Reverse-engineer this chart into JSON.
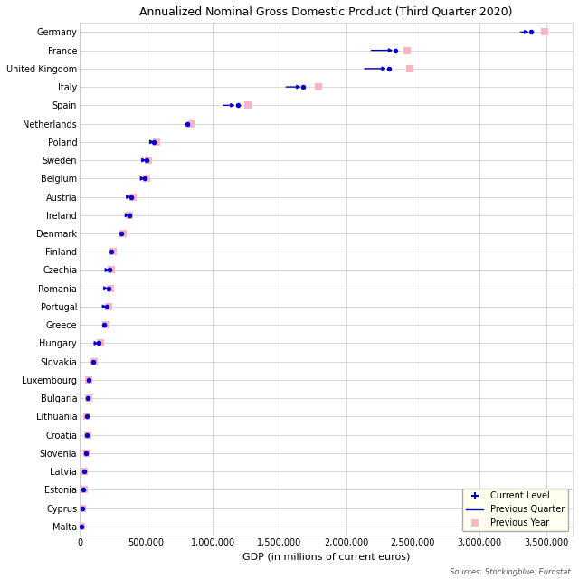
{
  "title": "Annualized Nominal Gross Domestic Product (Third Quarter 2020)",
  "xlabel": "GDP (in millions of current euros)",
  "source": "Sources: Stockingblue, Eurostat",
  "countries": [
    "Germany",
    "France",
    "United Kingdom",
    "Italy",
    "Spain",
    "Netherlands",
    "Poland",
    "Sweden",
    "Belgium",
    "Austria",
    "Ireland",
    "Denmark",
    "Finland",
    "Czechia",
    "Romania",
    "Portugal",
    "Greece",
    "Hungary",
    "Slovakia",
    "Luxembourg",
    "Bulgaria",
    "Lithuania",
    "Croatia",
    "Slovenia",
    "Latvia",
    "Estonia",
    "Cyprus",
    "Malta"
  ],
  "current": [
    3390000,
    2370000,
    2320000,
    1680000,
    1185000,
    810000,
    560000,
    500000,
    490000,
    385000,
    375000,
    315000,
    235000,
    225000,
    215000,
    205000,
    185000,
    143000,
    102000,
    67000,
    62000,
    52000,
    57000,
    50000,
    32000,
    29000,
    22000,
    14000
  ],
  "prev_quarter": [
    3290000,
    2170000,
    2120000,
    1530000,
    1060000,
    810000,
    535000,
    480000,
    465000,
    370000,
    368000,
    315000,
    235000,
    215000,
    205000,
    193000,
    185000,
    133000,
    102000,
    67000,
    62000,
    52000,
    54000,
    50000,
    30000,
    28000,
    21000,
    13000
  ],
  "prev_year": [
    3490000,
    2460000,
    2480000,
    1790000,
    1265000,
    845000,
    575000,
    515000,
    505000,
    398000,
    375000,
    328000,
    248000,
    238000,
    228000,
    218000,
    194000,
    153000,
    108000,
    70000,
    65000,
    54000,
    60000,
    53000,
    33000,
    31000,
    23000,
    15000
  ],
  "current_color": "#0000cc",
  "line_color": "#0000cc",
  "prev_year_color": "#ffb6c1",
  "background_color": "#ffffff",
  "grid_color": "#c8c8c8",
  "legend_bg": "#fffff0"
}
